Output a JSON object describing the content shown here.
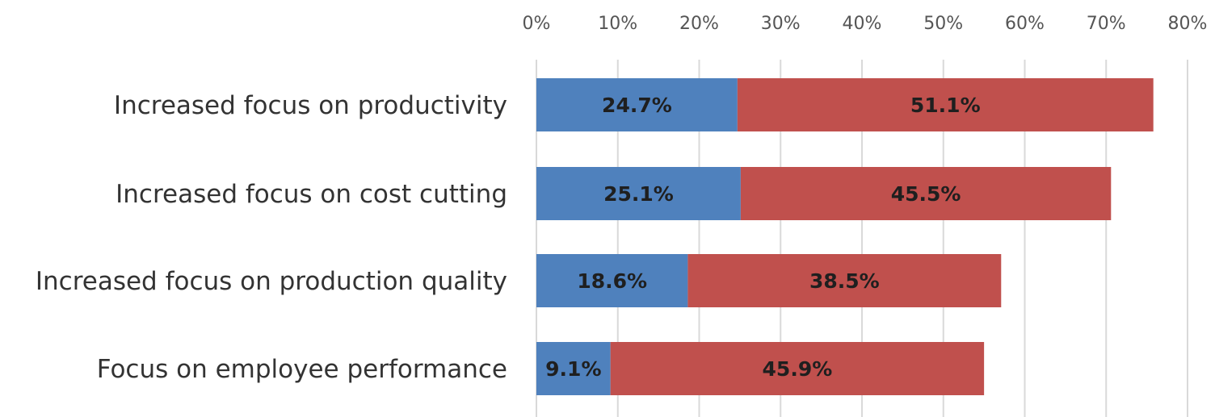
{
  "chart_data": {
    "type": "bar",
    "orientation": "horizontal",
    "stacked": true,
    "categories": [
      "Increased focus on productivity",
      "Increased focus on cost cutting",
      "Increased focus on production quality",
      "Focus on employee performance"
    ],
    "series": [
      {
        "values": [
          24.7,
          25.1,
          18.6,
          9.1
        ],
        "labels": [
          "24.7%",
          "25.1%",
          "18.6%",
          "9.1%"
        ],
        "color": "#4f81bd"
      },
      {
        "values": [
          51.1,
          45.5,
          38.5,
          45.9
        ],
        "labels": [
          "51.1%",
          "45.5%",
          "38.5%",
          "45.9%"
        ],
        "color": "#c0504d"
      }
    ],
    "xlim": [
      0,
      80
    ],
    "ticks": [
      0,
      10,
      20,
      30,
      40,
      50,
      60,
      70,
      80
    ],
    "tick_labels": [
      "0%",
      "10%",
      "20%",
      "30%",
      "40%",
      "50%",
      "60%",
      "70%",
      "80%"
    ],
    "xaxis_position": "top",
    "grid": true,
    "legend": false
  }
}
